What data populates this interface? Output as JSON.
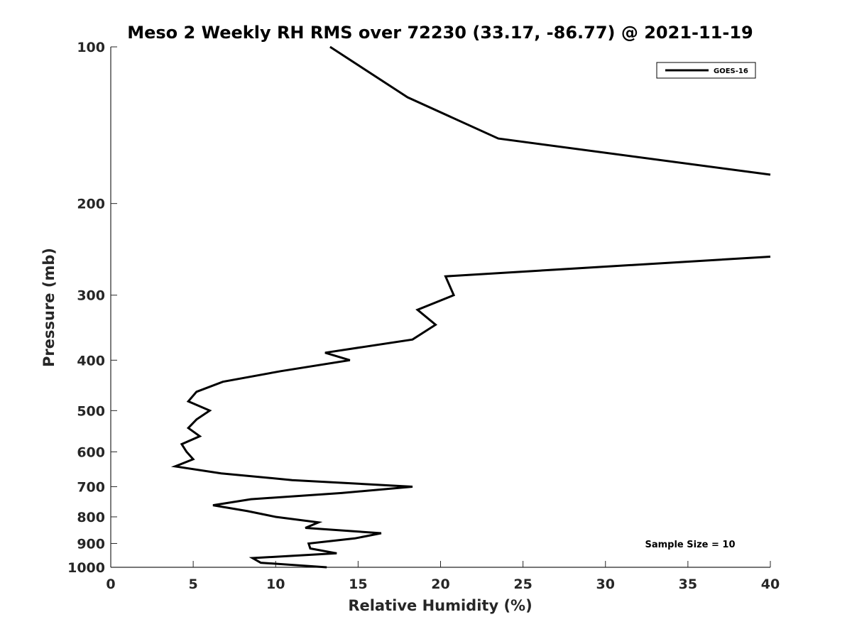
{
  "chart_data": {
    "type": "line",
    "title": "Meso 2 Weekly RH RMS over 72230 (33.17, -86.77) @ 2021-11-19",
    "xlabel": "Relative Humidity (%)",
    "ylabel": "Pressure (mb)",
    "xlim": [
      0,
      40
    ],
    "ylim": [
      100,
      1000
    ],
    "y_scale": "log",
    "y_reversed": true,
    "x_ticks": [
      0,
      5,
      10,
      15,
      20,
      25,
      30,
      35,
      40
    ],
    "y_ticks": [
      100,
      200,
      300,
      400,
      500,
      600,
      700,
      800,
      900,
      1000
    ],
    "grid": false,
    "legend_position": "top-right",
    "annotation": "Sample Size = 10",
    "series": [
      {
        "name": "GOES-16",
        "color": "#000000",
        "segments": [
          [
            [
              13.3,
              100
            ],
            [
              18.0,
              125
            ],
            [
              23.5,
              150
            ],
            [
              40,
              176
            ]
          ],
          [
            [
              40,
              253
            ],
            [
              20.3,
              276
            ],
            [
              20.8,
              300
            ],
            [
              18.6,
              320
            ],
            [
              19.7,
              342
            ],
            [
              18.3,
              365
            ],
            [
              13.0,
              387
            ],
            [
              14.5,
              400
            ],
            [
              10.3,
              420
            ],
            [
              6.8,
              440
            ],
            [
              5.2,
              460
            ],
            [
              4.7,
              480
            ],
            [
              6.0,
              500
            ],
            [
              5.2,
              520
            ],
            [
              4.7,
              540
            ],
            [
              5.4,
              560
            ],
            [
              4.3,
              580
            ],
            [
              4.6,
              600
            ],
            [
              5.0,
              620
            ],
            [
              3.9,
              640
            ],
            [
              6.7,
              660
            ],
            [
              11.0,
              680
            ],
            [
              18.3,
              700
            ],
            [
              14.0,
              720
            ],
            [
              8.5,
              740
            ],
            [
              6.2,
              760
            ],
            [
              8.3,
              780
            ],
            [
              10.0,
              800
            ],
            [
              12.6,
              820
            ],
            [
              11.8,
              840
            ],
            [
              16.4,
              860
            ],
            [
              14.8,
              880
            ],
            [
              12.0,
              900
            ],
            [
              12.1,
              920
            ],
            [
              13.7,
              940
            ],
            [
              8.6,
              960
            ],
            [
              9.1,
              980
            ],
            [
              13.1,
              1000
            ]
          ]
        ]
      }
    ]
  }
}
